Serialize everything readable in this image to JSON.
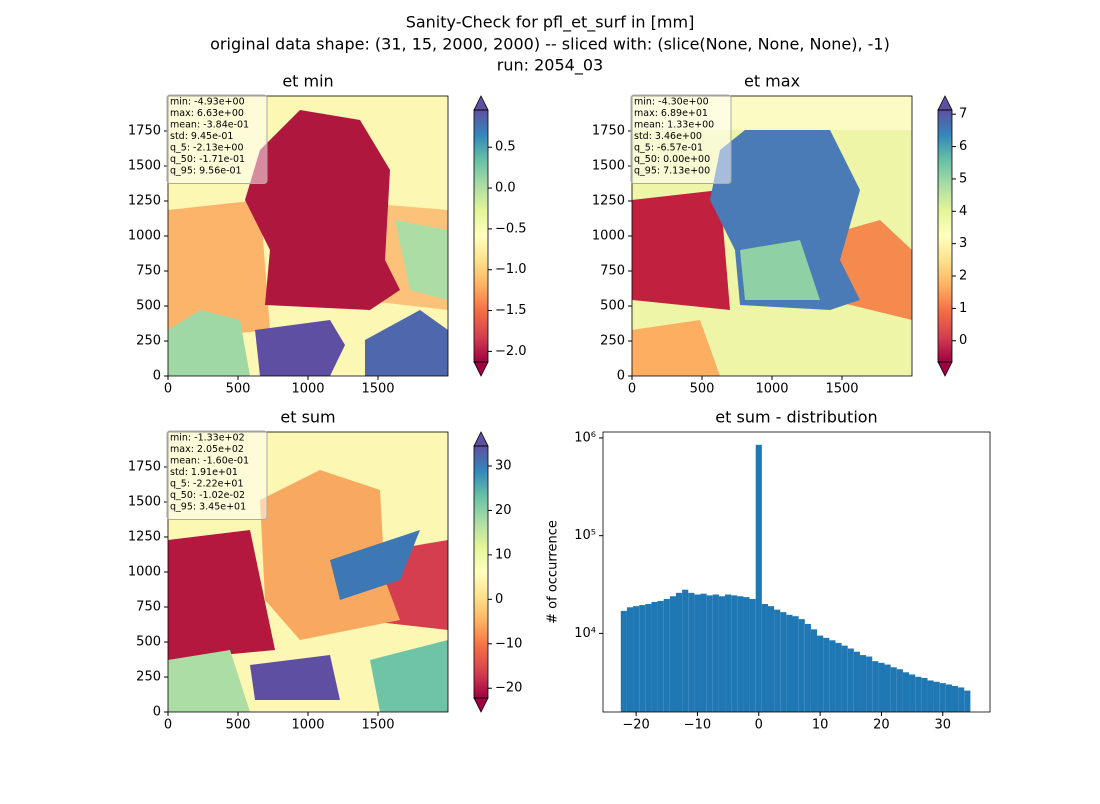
{
  "figure": {
    "title_lines": [
      "Sanity-Check for pfl_et_surf in [mm]",
      "original data shape: (31, 15, 2000, 2000) -- sliced with: (slice(None, None, None), -1)",
      "run: 2054_03"
    ]
  },
  "colormap": [
    "#9e0142",
    "#d53e4f",
    "#f46d43",
    "#fdae61",
    "#fee08b",
    "#ffffbf",
    "#e6f598",
    "#abdda4",
    "#66c2a5",
    "#3288bd",
    "#5e4fa2"
  ],
  "chart_data": [
    {
      "type": "heatmap",
      "title": "et min",
      "stats": [
        "min: -4.93e+00",
        "max: 6.63e+00",
        "mean: -3.84e-01",
        "std: 9.45e-01",
        "q_5: -2.13e+00",
        "q_50: -1.71e-01",
        "q_95: 9.56e-01"
      ],
      "xlim": [
        0,
        2000
      ],
      "ylim": [
        0,
        2000
      ],
      "xticks": [
        0,
        500,
        1000,
        1500
      ],
      "yticks": [
        0,
        250,
        500,
        750,
        1000,
        1250,
        1500,
        1750
      ],
      "colorbar": {
        "lim": [
          -2.13,
          0.956
        ],
        "ticks": [
          {
            "value": -2.0,
            "label": "−2.0"
          },
          {
            "value": -1.5,
            "label": "−1.5"
          },
          {
            "value": -1.0,
            "label": "−1.0"
          },
          {
            "value": -0.5,
            "label": "−0.5"
          },
          {
            "value": 0.0,
            "label": "0.0"
          },
          0.5
        ]
      }
    },
    {
      "type": "heatmap",
      "title": "et max",
      "stats": [
        "min: -4.30e+00",
        "max: 6.89e+01",
        "mean: 1.33e+00",
        "std: 3.46e+00",
        "q_5: -6.57e-01",
        "q_50: 0.00e+00",
        "q_95: 7.13e+00"
      ],
      "xlim": [
        0,
        2000
      ],
      "ylim": [
        0,
        2000
      ],
      "xticks": [
        0,
        500,
        1000,
        1500
      ],
      "yticks": [
        0,
        250,
        500,
        750,
        1000,
        1250,
        1500,
        1750
      ],
      "colorbar": {
        "lim": [
          -0.657,
          7.13
        ],
        "ticks": [
          0,
          1,
          2,
          3,
          4,
          5,
          6,
          7
        ]
      }
    },
    {
      "type": "heatmap",
      "title": "et sum",
      "stats": [
        "min: -1.33e+02",
        "max: 2.05e+02",
        "mean: -1.60e-01",
        "std: 1.91e+01",
        "q_5: -2.22e+01",
        "q_50: -1.02e-02",
        "q_95: 3.45e+01"
      ],
      "xlim": [
        0,
        2000
      ],
      "ylim": [
        0,
        2000
      ],
      "xticks": [
        0,
        500,
        1000,
        1500
      ],
      "yticks": [
        0,
        250,
        500,
        750,
        1000,
        1250,
        1500,
        1750
      ],
      "colorbar": {
        "lim": [
          -22.2,
          34.5
        ],
        "ticks": [
          {
            "value": -20,
            "label": "−20"
          },
          {
            "value": -10,
            "label": "−10"
          },
          0,
          10,
          20,
          30
        ]
      }
    },
    {
      "type": "histogram",
      "title": "et sum - distribution",
      "y_label": "# of occurrence",
      "color": "#1f77b4",
      "log_y": true,
      "bins": [
        -22.5,
        -21.5,
        -20.5,
        -19.5,
        -18.5,
        -17.5,
        -16.5,
        -15.5,
        -14.5,
        -13.5,
        -12.5,
        -11.5,
        -10.5,
        -9.5,
        -8.5,
        -7.5,
        -6.5,
        -5.5,
        -4.5,
        -3.5,
        -2.5,
        -1.5,
        -0.5,
        0.5,
        1.5,
        2.5,
        3.5,
        4.5,
        5.5,
        6.5,
        7.5,
        8.5,
        9.5,
        10.5,
        11.5,
        12.5,
        13.5,
        14.5,
        15.5,
        16.5,
        17.5,
        18.5,
        19.5,
        20.5,
        21.5,
        22.5,
        23.5,
        24.5,
        25.5,
        26.5,
        27.5,
        28.5,
        29.5,
        30.5,
        31.5,
        32.5,
        33.5,
        34.5
      ],
      "values": [
        17000,
        18500,
        19000,
        19500,
        20000,
        21000,
        21500,
        22500,
        24000,
        26000,
        28000,
        26000,
        25000,
        25500,
        24500,
        25000,
        24000,
        25000,
        24500,
        24000,
        23500,
        22500,
        850000,
        20000,
        19000,
        17500,
        16500,
        15500,
        15000,
        14000,
        12500,
        11000,
        9500,
        9000,
        8500,
        8000,
        7500,
        7000,
        6500,
        6000,
        5800,
        5200,
        5000,
        4800,
        4500,
        4300,
        4000,
        3800,
        3600,
        3500,
        3300,
        3200,
        3100,
        3000,
        2900,
        2800,
        2600
      ],
      "xlim": [
        -25.4,
        37.7
      ],
      "ylim": [
        1570,
        1150000
      ],
      "xticks": [
        {
          "value": -20,
          "label": "−20"
        },
        {
          "value": -10,
          "label": "−10"
        },
        0,
        10,
        20,
        30
      ],
      "yticks": [
        {
          "value": 10000,
          "label": "10⁴"
        },
        {
          "value": 100000,
          "label": "10⁵"
        },
        {
          "value": 1000000,
          "label": "10⁶"
        }
      ]
    }
  ]
}
